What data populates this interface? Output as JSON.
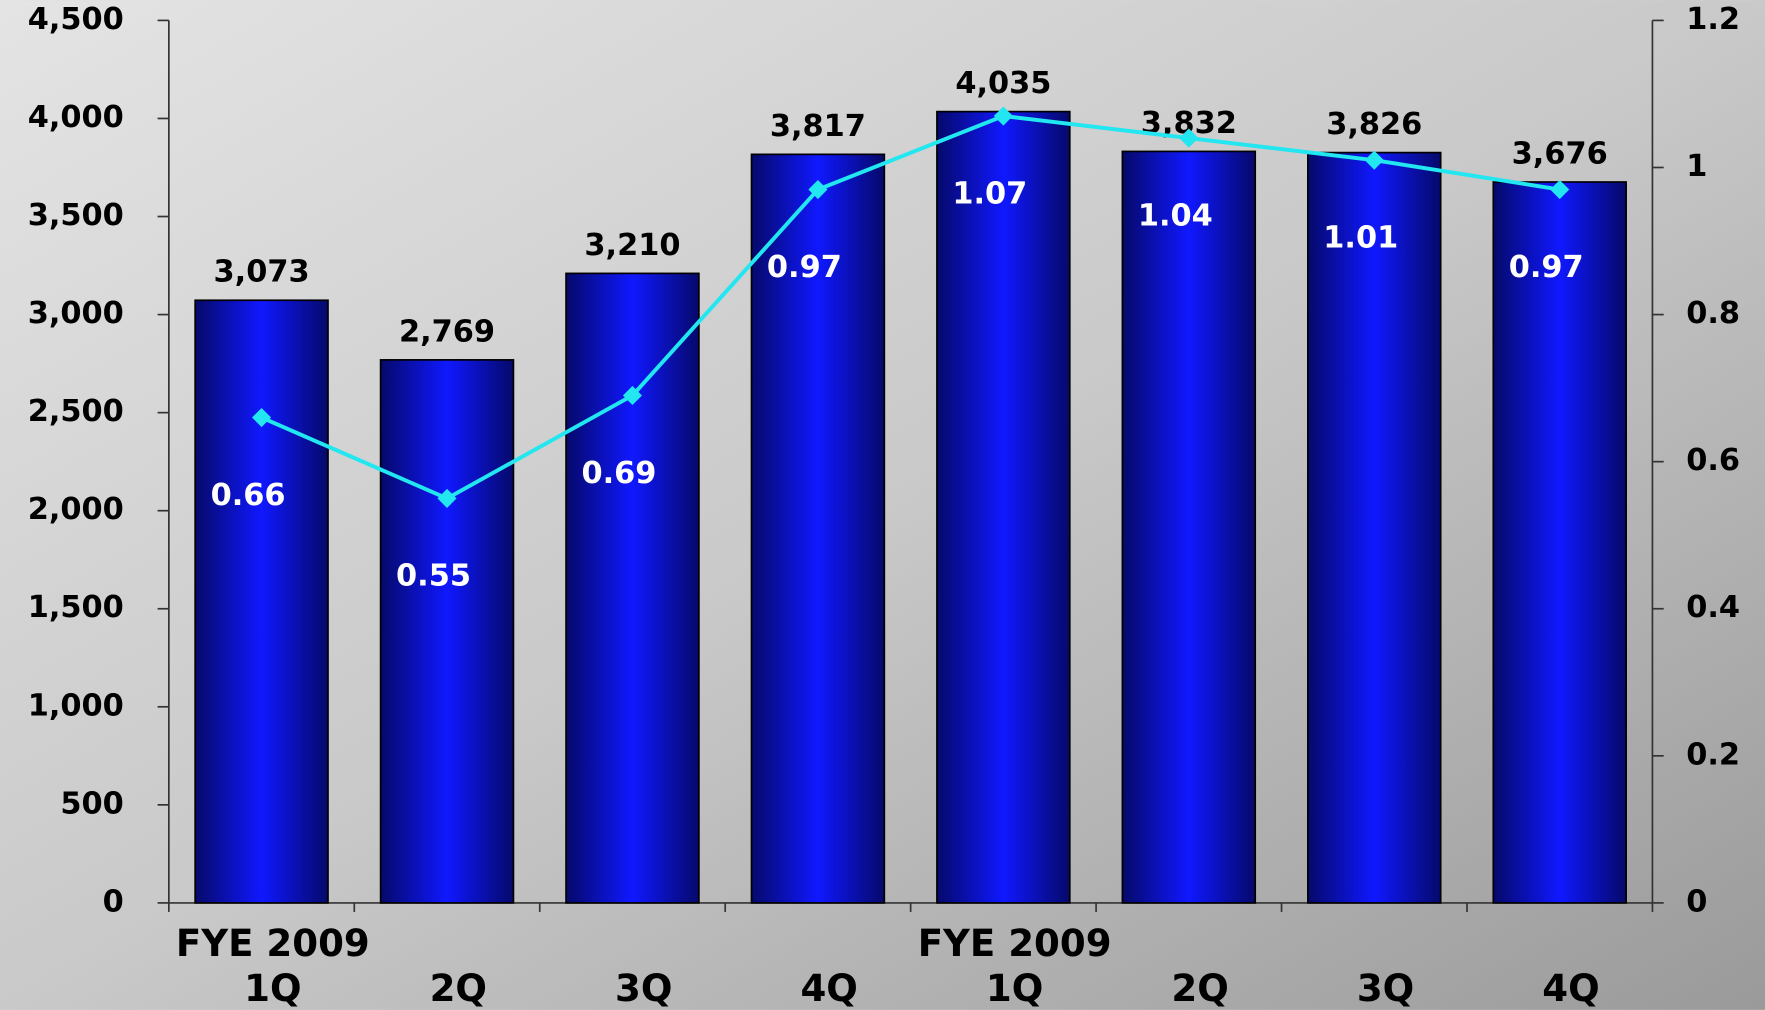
{
  "chart_data": {
    "type": "bar",
    "categories": [
      "1Q",
      "2Q",
      "3Q",
      "4Q",
      "1Q",
      "2Q",
      "3Q",
      "4Q"
    ],
    "group_labels": [
      "FYE 2009",
      "FYE 2009"
    ],
    "series": [
      {
        "type": "bar",
        "color": "#0a14e0",
        "values": [
          3073,
          2769,
          3210,
          3817,
          4035,
          3832,
          3826,
          3676
        ],
        "value_labels": [
          "3,073",
          "2,769",
          "3,210",
          "3,817",
          "4,035",
          "3,832",
          "3,826",
          "3,676"
        ]
      },
      {
        "type": "line",
        "axis": "y2",
        "color": "#22e6f0",
        "values": [
          0.66,
          0.55,
          0.69,
          0.97,
          1.07,
          1.04,
          1.01,
          0.97
        ]
      }
    ],
    "ylim": [
      0,
      4500
    ],
    "yticks": [
      0,
      {
        "value": 500,
        "label": "500"
      },
      {
        "value": 1000,
        "label": "1,000"
      },
      {
        "value": 1500,
        "label": "1,500"
      },
      {
        "value": 2000,
        "label": "2,000"
      },
      {
        "value": 2500,
        "label": "2,500"
      },
      {
        "value": 3000,
        "label": "3,000"
      },
      {
        "value": 3500,
        "label": "3,500"
      },
      {
        "value": 4000,
        "label": "4,000"
      },
      {
        "value": 4500,
        "label": "4,500"
      }
    ],
    "y2lim": [
      0,
      1.2
    ],
    "y2ticks": [
      0,
      0.2,
      0.4,
      0.6,
      0.8,
      1,
      1.2
    ]
  }
}
